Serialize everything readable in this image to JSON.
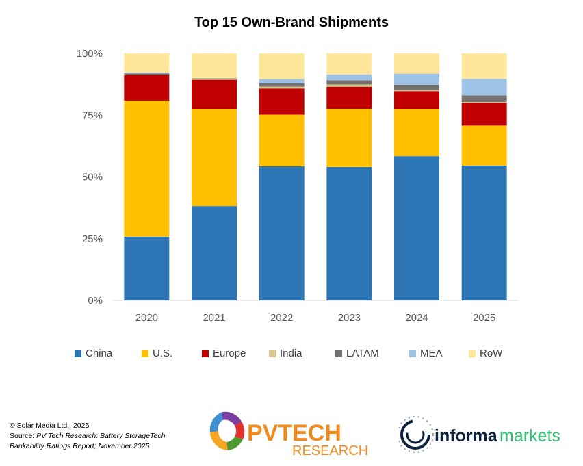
{
  "chart_data": {
    "type": "bar",
    "stacked": true,
    "title": "Top 15 Own-Brand Shipments",
    "xlabel": "",
    "ylabel": "",
    "ylim": [
      0,
      100
    ],
    "yticks": [
      "0%",
      "25%",
      "50%",
      "75%",
      "100%"
    ],
    "categories": [
      "2020",
      "2021",
      "2022",
      "2023",
      "2024",
      "2025"
    ],
    "series": [
      {
        "name": "China",
        "color": "#2E75B6",
        "values": [
          25.8,
          38.2,
          54.3,
          54.0,
          58.4,
          54.6
        ]
      },
      {
        "name": "U.S.",
        "color": "#FFC000",
        "values": [
          55.1,
          39.1,
          20.9,
          23.5,
          18.9,
          16.2
        ]
      },
      {
        "name": "Europe",
        "color": "#C00000",
        "values": [
          10.4,
          12.0,
          10.6,
          9.0,
          7.4,
          9.2
        ]
      },
      {
        "name": "India",
        "color": "#D9C48A",
        "values": [
          0.1,
          0.5,
          0.7,
          0.9,
          0.3,
          0.3
        ]
      },
      {
        "name": "LATAM",
        "color": "#767171",
        "values": [
          0.5,
          0.1,
          1.4,
          1.7,
          2.3,
          2.7
        ]
      },
      {
        "name": "MEA",
        "color": "#9DC3E6",
        "values": [
          0.4,
          0.1,
          1.7,
          2.4,
          4.5,
          6.7
        ]
      },
      {
        "name": "RoW",
        "color": "#FFE699",
        "values": [
          7.7,
          10.0,
          10.4,
          8.5,
          8.2,
          10.3
        ]
      }
    ],
    "legend_position": "bottom",
    "grid": false
  },
  "footer": {
    "copyright": "© Solar Media Ltd,. 2025",
    "source_prefix": "Source: ",
    "source_italic": "PV Tech Research: Battery StorageTech",
    "source_line2": "Bankability Ratings Report; November 2025"
  },
  "logos": {
    "pvtech": "PVTECH",
    "pvtech_sub": "RESEARCH",
    "informa1": "informa",
    "informa2": "markets"
  }
}
